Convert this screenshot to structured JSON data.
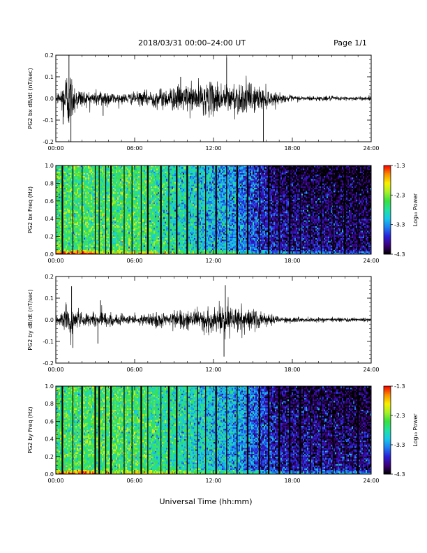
{
  "header": {
    "title": "2018/03/31  00:00–24:00 UT",
    "page": "Page 1/1"
  },
  "xlabel": "Universal Time (hh:mm)",
  "x_ticks": [
    "00:00",
    "06:00",
    "12:00",
    "18:00",
    "24:00"
  ],
  "colorbar": {
    "label": "Log₁₀ Power",
    "ticks": [
      "-1.3",
      "-2.3",
      "-3.3",
      "-4.3"
    ],
    "range": [
      -4.3,
      -1.3
    ],
    "colors": [
      "#000000",
      "#3c007a",
      "#2a1fd8",
      "#1e7cf0",
      "#18c8e8",
      "#22e0a0",
      "#38e040",
      "#a8f028",
      "#f8f000",
      "#f89000",
      "#f80000"
    ]
  },
  "chart_data": [
    {
      "type": "line",
      "id": "bx-dbdt",
      "ylabel": "PG2 bx dB/dt (nT/sec)",
      "xlim": [
        0,
        24
      ],
      "ylim": [
        -0.2,
        0.2
      ],
      "y_ticks": [
        "0.2",
        "0.1",
        "0.0",
        "-0.1",
        "-0.2"
      ],
      "envelope": {
        "x_hours": [
          0,
          0.3,
          0.6,
          0.9,
          1.1,
          1.4,
          1.8,
          2.5,
          3.0,
          3.6,
          4.0,
          4.5,
          5.0,
          6.0,
          7.0,
          8.0,
          9.0,
          10.0,
          11.0,
          12.0,
          12.5,
          13.0,
          14.0,
          15.0,
          15.5,
          16.0,
          16.5,
          17.0,
          18.0,
          19.0,
          20.0,
          21.0,
          22.0,
          23.0,
          24.0
        ],
        "amplitude": [
          0.02,
          0.04,
          0.1,
          0.17,
          0.14,
          0.08,
          0.05,
          0.035,
          0.04,
          0.05,
          0.04,
          0.025,
          0.025,
          0.03,
          0.04,
          0.05,
          0.06,
          0.07,
          0.075,
          0.08,
          0.085,
          0.075,
          0.08,
          0.075,
          0.06,
          0.05,
          0.035,
          0.022,
          0.015,
          0.012,
          0.012,
          0.012,
          0.01,
          0.01,
          0.01
        ]
      },
      "spikes": [
        {
          "x": 1.0,
          "y": 0.2
        },
        {
          "x": 1.15,
          "y": -0.2
        },
        {
          "x": 0.55,
          "y": -0.12
        },
        {
          "x": 13.0,
          "y": 0.19
        },
        {
          "x": 15.8,
          "y": -0.2
        },
        {
          "x": 9.5,
          "y": 0.1
        },
        {
          "x": 3.6,
          "y": -0.08
        }
      ]
    },
    {
      "type": "heatmap",
      "id": "bx-spectrogram",
      "ylabel": "PG2 bx Freq (Hz)",
      "xlim": [
        0,
        24
      ],
      "ylim": [
        0,
        1.0
      ],
      "y_ticks": [
        "1.0",
        "0.8",
        "0.6",
        "0.4",
        "0.2",
        "0.0"
      ],
      "log_power_trend": {
        "x_hours": [
          0,
          3,
          6,
          8,
          10,
          12,
          14,
          15.5,
          17,
          19,
          21,
          24
        ],
        "mean_log_power": [
          -2.55,
          -2.6,
          -2.6,
          -2.75,
          -2.95,
          -3.15,
          -3.35,
          -3.7,
          -3.95,
          -4.0,
          -4.05,
          -4.1
        ]
      },
      "gap_lines_hours": [
        0.5,
        1.3,
        2.0,
        3.0,
        3.3,
        3.8,
        4.2,
        5.2,
        5.8,
        6.5,
        7.0,
        8.0,
        8.6,
        9.2,
        10.0,
        10.8,
        11.4,
        12.2,
        13.0,
        13.8,
        14.6,
        15.5,
        16.2,
        17.0,
        17.8,
        18.6,
        19.4,
        20.2,
        21.1,
        22.0,
        23.0
      ]
    },
    {
      "type": "line",
      "id": "by-dbdt",
      "ylabel": "PG2 by dB/dt (nT/sec)",
      "xlim": [
        0,
        24
      ],
      "ylim": [
        -0.2,
        0.2
      ],
      "y_ticks": [
        "0.2",
        "0.1",
        "0.0",
        "-0.1",
        "-0.2"
      ],
      "envelope": {
        "x_hours": [
          0,
          0.5,
          0.9,
          1.2,
          1.5,
          2.0,
          3.0,
          3.5,
          4.0,
          5.0,
          6.0,
          7.0,
          8.0,
          9.0,
          10.0,
          11.0,
          12.0,
          12.5,
          13.0,
          13.5,
          14.0,
          15.0,
          16.0,
          17.0,
          18.0,
          19.0,
          20.0,
          21.0,
          22.0,
          23.0,
          24.0
        ],
        "amplitude": [
          0.02,
          0.04,
          0.08,
          0.1,
          0.06,
          0.035,
          0.03,
          0.05,
          0.03,
          0.025,
          0.025,
          0.03,
          0.035,
          0.04,
          0.045,
          0.055,
          0.07,
          0.08,
          0.085,
          0.075,
          0.065,
          0.05,
          0.03,
          0.02,
          0.015,
          0.012,
          0.01,
          0.01,
          0.01,
          0.01,
          0.01
        ]
      },
      "spikes": [
        {
          "x": 1.2,
          "y": 0.155
        },
        {
          "x": 1.3,
          "y": -0.13
        },
        {
          "x": 3.4,
          "y": 0.09
        },
        {
          "x": 3.2,
          "y": -0.11
        },
        {
          "x": 12.9,
          "y": 0.16
        },
        {
          "x": 12.8,
          "y": -0.17
        }
      ]
    },
    {
      "type": "heatmap",
      "id": "by-spectrogram",
      "ylabel": "PG2 by Freq (Hz)",
      "xlim": [
        0,
        24
      ],
      "ylim": [
        0,
        1.0
      ],
      "y_ticks": [
        "1.0",
        "0.8",
        "0.6",
        "0.4",
        "0.2",
        "0.0"
      ],
      "log_power_trend": {
        "x_hours": [
          0,
          3,
          6,
          8,
          10,
          12,
          14,
          15.5,
          17,
          19,
          21,
          24
        ],
        "mean_log_power": [
          -2.6,
          -2.6,
          -2.6,
          -2.75,
          -2.9,
          -3.05,
          -3.25,
          -3.55,
          -3.85,
          -3.95,
          -4.0,
          -4.05
        ]
      },
      "gap_lines_hours": [
        0.5,
        1.3,
        2.0,
        3.0,
        3.3,
        3.8,
        4.2,
        5.2,
        5.8,
        6.5,
        7.0,
        8.0,
        8.6,
        9.2,
        10.0,
        10.8,
        11.4,
        12.2,
        13.0,
        13.8,
        14.6,
        15.5,
        16.2,
        17.0,
        17.8,
        18.6,
        19.4,
        20.2,
        21.1,
        22.0,
        23.0
      ]
    }
  ]
}
